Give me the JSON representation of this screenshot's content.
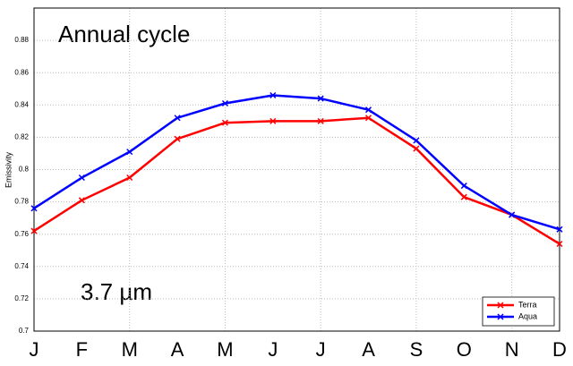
{
  "chart_data": {
    "type": "line",
    "annotations": [
      "Annual cycle",
      "3.7 µm"
    ],
    "y_label": "Emissivity",
    "categories": [
      "J",
      "F",
      "M",
      "A",
      "M",
      "J",
      "J",
      "A",
      "S",
      "O",
      "N",
      "D"
    ],
    "series": [
      {
        "name": "Terra",
        "color": "#ff0000",
        "values": [
          0.762,
          0.781,
          0.795,
          0.819,
          0.829,
          0.83,
          0.83,
          0.832,
          0.813,
          0.783,
          0.772,
          0.754
        ]
      },
      {
        "name": "Aqua",
        "color": "#0000ff",
        "values": [
          0.776,
          0.795,
          0.811,
          0.832,
          0.841,
          0.846,
          0.844,
          0.837,
          0.818,
          0.79,
          0.772,
          0.763
        ]
      }
    ],
    "ylim": [
      0.7,
      0.9
    ],
    "yticks": [
      0.7,
      0.72,
      0.74,
      0.76,
      0.78,
      0.8,
      0.82,
      0.84,
      0.86,
      0.88
    ],
    "grid": true,
    "legend": "lower right"
  }
}
